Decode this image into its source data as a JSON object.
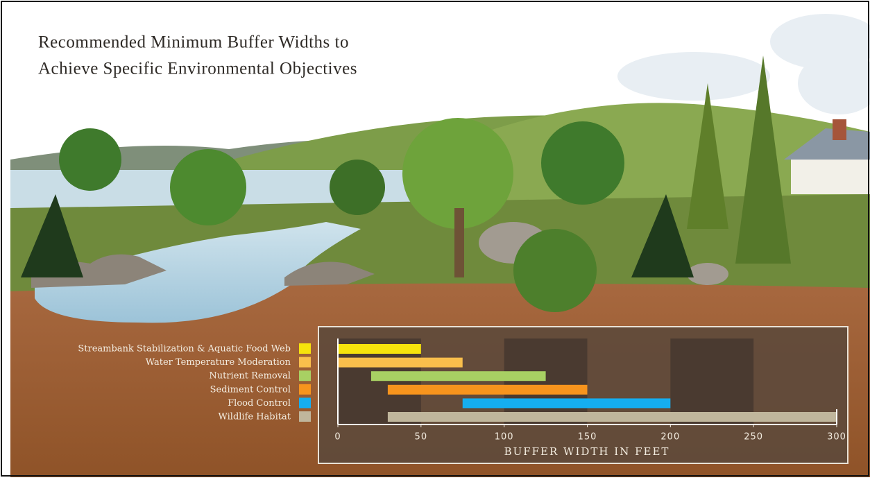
{
  "chart_data": {
    "type": "range-bar",
    "title_lines": [
      "Recommended Minimum Buffer Widths to",
      "Achieve Specific Environmental Objectives"
    ],
    "x_label": "BUFFER WIDTH IN FEET",
    "categories": [
      "Streambank Stabilization & Aquatic Food Web",
      "Water Temperature Moderation",
      "Nutrient Removal",
      "Sediment Control",
      "Flood Control",
      "Wildlife Habitat"
    ],
    "starts": [
      0,
      0,
      20,
      30,
      75,
      30
    ],
    "ends": [
      50,
      75,
      125,
      150,
      200,
      300
    ],
    "colors": [
      "#f6e30c",
      "#f9bf4c",
      "#a8d063",
      "#f7941d",
      "#15aef0",
      "#c0b69c"
    ],
    "xlim": [
      0,
      300
    ],
    "xticks": [
      0,
      50,
      100,
      150,
      200,
      250,
      300
    ]
  }
}
